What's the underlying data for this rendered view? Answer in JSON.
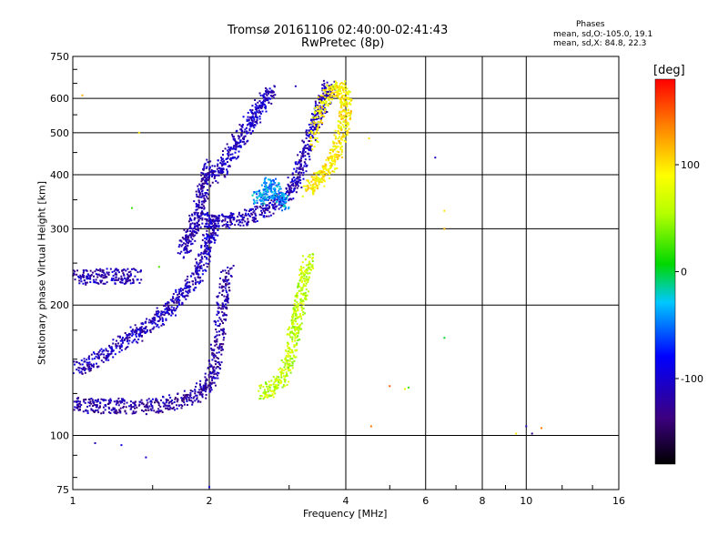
{
  "chart_data": {
    "type": "scatter",
    "title": "Tromsø 20161106 02:40:00-02:41:43",
    "subtitle": "RwPretec (8p)",
    "xlabel": "Frequency [MHz]",
    "ylabel": "Stationary phase Virtual Height [km]",
    "x_scale": "log",
    "y_scale": "log",
    "xlim": [
      1,
      16
    ],
    "ylim": [
      75,
      750
    ],
    "x_ticks": [
      1,
      2,
      4,
      6,
      8,
      10,
      16
    ],
    "x_tick_labels": [
      "1",
      "2",
      "4",
      "6",
      "8",
      "10",
      "16"
    ],
    "y_ticks": [
      75,
      100,
      200,
      300,
      400,
      500,
      600,
      750
    ],
    "y_tick_labels": [
      "75",
      "100",
      "200",
      "300",
      "400",
      "500",
      "600",
      "750"
    ],
    "grid": true,
    "phase_stats": {
      "heading": "Phases",
      "line_o": "mean, sd,O:-105.0, 19.1",
      "line_x": "mean, sd,X:  84.8, 22.3"
    },
    "colorbar": {
      "unit": "[deg]",
      "range": [
        -180,
        180
      ],
      "ticks": [
        100,
        0,
        -100
      ],
      "tick_labels": [
        "100",
        "0",
        "-100"
      ]
    },
    "traces": [
      {
        "phase": -120,
        "points": [
          [
            1.0,
            118
          ],
          [
            1.1,
            117
          ],
          [
            1.2,
            117
          ],
          [
            1.3,
            117
          ],
          [
            1.45,
            116
          ],
          [
            1.6,
            118
          ],
          [
            1.75,
            121
          ],
          [
            1.9,
            125
          ],
          [
            2.0,
            132
          ],
          [
            2.05,
            145
          ],
          [
            2.1,
            165
          ],
          [
            2.12,
            190
          ],
          [
            2.15,
            215
          ],
          [
            2.2,
            240
          ]
        ]
      },
      {
        "phase": -110,
        "points": [
          [
            1.02,
            142
          ],
          [
            1.1,
            148
          ],
          [
            1.2,
            156
          ],
          [
            1.3,
            165
          ],
          [
            1.4,
            173
          ],
          [
            1.5,
            182
          ],
          [
            1.6,
            192
          ],
          [
            1.7,
            205
          ],
          [
            1.8,
            220
          ],
          [
            1.9,
            240
          ],
          [
            1.95,
            262
          ],
          [
            2.0,
            285
          ],
          [
            2.05,
            305
          ]
        ]
      },
      {
        "phase": -115,
        "points": [
          [
            1.0,
            232
          ],
          [
            1.1,
            232
          ],
          [
            1.2,
            233
          ],
          [
            1.3,
            233
          ],
          [
            1.4,
            234
          ]
        ]
      },
      {
        "phase": -118,
        "points": [
          [
            1.75,
            265
          ],
          [
            1.8,
            285
          ],
          [
            1.85,
            305
          ],
          [
            1.9,
            330
          ],
          [
            1.93,
            360
          ],
          [
            1.97,
            390
          ],
          [
            2.0,
            420
          ]
        ]
      },
      {
        "phase": -112,
        "points": [
          [
            1.97,
            315
          ],
          [
            2.05,
            311
          ],
          [
            2.2,
            312
          ],
          [
            2.4,
            318
          ],
          [
            2.6,
            328
          ],
          [
            2.8,
            342
          ],
          [
            3.0,
            360
          ],
          [
            3.1,
            385
          ],
          [
            3.2,
            420
          ],
          [
            3.3,
            470
          ],
          [
            3.4,
            520
          ],
          [
            3.5,
            560
          ],
          [
            3.6,
            600
          ],
          [
            3.7,
            640
          ]
        ]
      },
      {
        "phase": -108,
        "points": [
          [
            2.05,
            395
          ],
          [
            2.15,
            420
          ],
          [
            2.25,
            455
          ],
          [
            2.35,
            490
          ],
          [
            2.45,
            525
          ],
          [
            2.55,
            560
          ],
          [
            2.65,
            595
          ],
          [
            2.75,
            620
          ]
        ]
      },
      {
        "phase": -40,
        "points": [
          [
            2.55,
            350
          ],
          [
            2.65,
            365
          ],
          [
            2.75,
            380
          ],
          [
            2.85,
            355
          ],
          [
            2.95,
            340
          ]
        ]
      },
      {
        "phase": 60,
        "points": [
          [
            2.6,
            125
          ],
          [
            2.75,
            128
          ],
          [
            2.9,
            135
          ],
          [
            3.0,
            148
          ],
          [
            3.05,
            165
          ],
          [
            3.1,
            180
          ],
          [
            3.15,
            195
          ],
          [
            3.2,
            215
          ],
          [
            3.25,
            235
          ],
          [
            3.3,
            255
          ]
        ]
      },
      {
        "phase": 95,
        "points": [
          [
            3.3,
            370
          ],
          [
            3.45,
            385
          ],
          [
            3.6,
            405
          ],
          [
            3.75,
            430
          ],
          [
            3.85,
            470
          ],
          [
            3.95,
            520
          ],
          [
            4.0,
            560
          ],
          [
            4.0,
            600
          ],
          [
            3.9,
            640
          ],
          [
            3.7,
            620
          ],
          [
            3.5,
            560
          ],
          [
            3.4,
            470
          ]
        ]
      }
    ],
    "isolated_points": [
      [
        1.05,
        610,
        120
      ],
      [
        1.12,
        96,
        -110
      ],
      [
        1.28,
        95,
        -90
      ],
      [
        1.35,
        335,
        20
      ],
      [
        1.4,
        500,
        100
      ],
      [
        1.45,
        89,
        -100
      ],
      [
        1.55,
        245,
        30
      ],
      [
        2.0,
        76,
        -90
      ],
      [
        3.1,
        640,
        -110
      ],
      [
        4.5,
        485,
        100
      ],
      [
        4.55,
        105,
        140
      ],
      [
        5.0,
        130,
        150
      ],
      [
        5.4,
        128,
        80
      ],
      [
        5.5,
        129,
        20
      ],
      [
        6.3,
        438,
        -110
      ],
      [
        6.6,
        330,
        100
      ],
      [
        6.6,
        300,
        120
      ],
      [
        6.6,
        168,
        0
      ],
      [
        9.5,
        101,
        100
      ],
      [
        10.0,
        105,
        -110
      ],
      [
        10.3,
        101,
        -130
      ],
      [
        10.8,
        104,
        140
      ]
    ]
  }
}
